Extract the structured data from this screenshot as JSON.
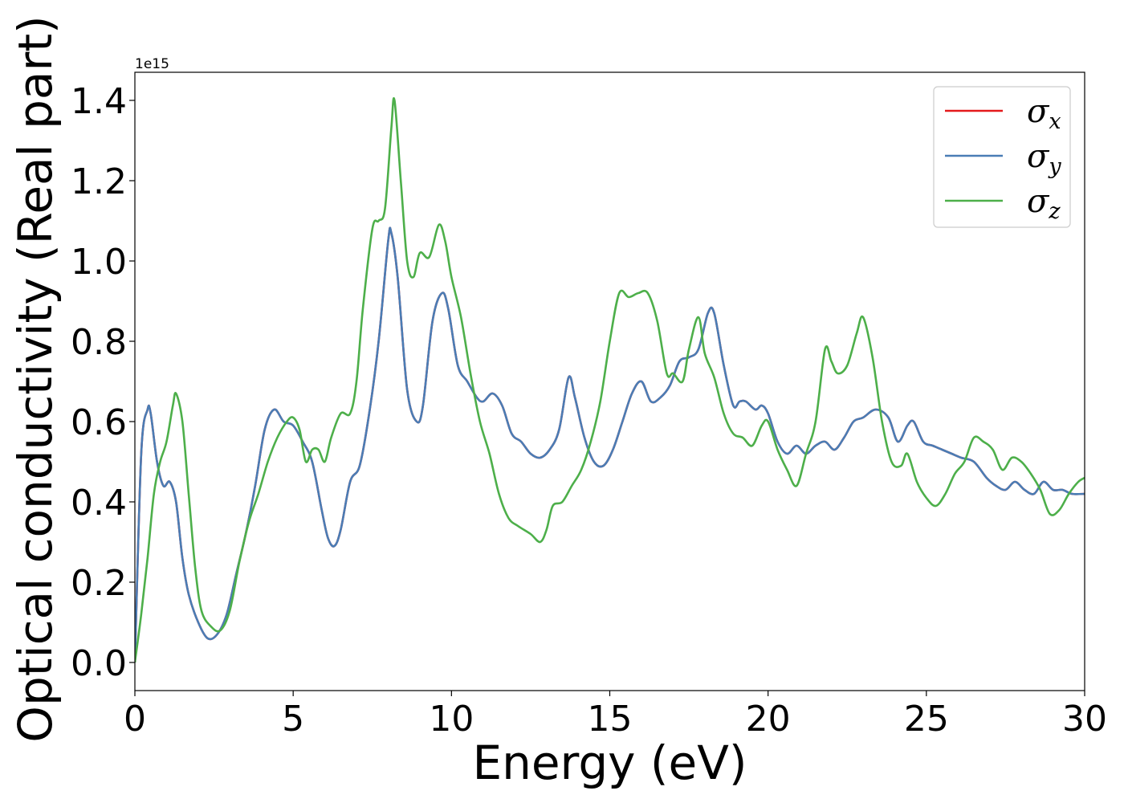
{
  "chart_data": {
    "type": "line",
    "title": "",
    "xlabel": "Energy (eV)",
    "ylabel": "Optical conductivity (Real part)",
    "y_offset_label": "1e15",
    "xlim": [
      0,
      30
    ],
    "ylim": [
      -0.07,
      1.47
    ],
    "xticks": [
      0,
      5,
      10,
      15,
      20,
      25,
      30
    ],
    "xtick_labels": [
      "0",
      "5",
      "10",
      "15",
      "20",
      "25",
      "30"
    ],
    "yticks": [
      0.0,
      0.2,
      0.4,
      0.6,
      0.8,
      1.0,
      1.2,
      1.4
    ],
    "ytick_labels": [
      "0.0",
      "0.2",
      "0.4",
      "0.6",
      "0.8",
      "1.0",
      "1.2",
      "1.4"
    ],
    "grid": false,
    "legend_position": "top-right",
    "series": [
      {
        "name": "σx",
        "symbol": "σ",
        "subscript": "x",
        "color": "#e41a1c",
        "x": [
          0,
          0.2,
          0.4,
          0.5,
          0.7,
          0.9,
          1.1,
          1.3,
          1.5,
          1.7,
          2.0,
          2.3,
          2.6,
          2.9,
          3.2,
          3.5,
          3.8,
          4.1,
          4.4,
          4.7,
          5.0,
          5.3,
          5.6,
          5.9,
          6.1,
          6.3,
          6.5,
          6.8,
          7.1,
          7.4,
          7.7,
          8.0,
          8.1,
          8.3,
          8.6,
          8.9,
          9.1,
          9.4,
          9.7,
          9.9,
          10.2,
          10.5,
          10.8,
          11.0,
          11.3,
          11.6,
          11.9,
          12.2,
          12.5,
          12.8,
          13.1,
          13.4,
          13.7,
          13.9,
          14.2,
          14.5,
          14.8,
          15.1,
          15.4,
          15.7,
          16.0,
          16.3,
          16.6,
          16.9,
          17.2,
          17.5,
          17.8,
          18.1,
          18.3,
          18.6,
          18.9,
          19.1,
          19.3,
          19.6,
          19.8,
          20.0,
          20.3,
          20.6,
          20.9,
          21.2,
          21.5,
          21.8,
          22.1,
          22.4,
          22.7,
          23.0,
          23.4,
          23.8,
          24.1,
          24.4,
          24.6,
          24.9,
          25.2,
          25.5,
          25.8,
          26.1,
          26.5,
          26.9,
          27.2,
          27.5,
          27.8,
          28.1,
          28.4,
          28.7,
          29.0,
          29.3,
          29.6,
          30.0
        ],
        "y": [
          0.0,
          0.52,
          0.63,
          0.62,
          0.5,
          0.44,
          0.45,
          0.4,
          0.26,
          0.17,
          0.1,
          0.06,
          0.07,
          0.12,
          0.22,
          0.32,
          0.44,
          0.58,
          0.63,
          0.6,
          0.59,
          0.55,
          0.5,
          0.38,
          0.31,
          0.29,
          0.33,
          0.45,
          0.49,
          0.62,
          0.8,
          1.05,
          1.07,
          0.96,
          0.68,
          0.6,
          0.64,
          0.85,
          0.92,
          0.88,
          0.74,
          0.7,
          0.66,
          0.65,
          0.67,
          0.64,
          0.57,
          0.55,
          0.52,
          0.51,
          0.53,
          0.58,
          0.71,
          0.66,
          0.56,
          0.5,
          0.49,
          0.53,
          0.6,
          0.67,
          0.7,
          0.65,
          0.66,
          0.69,
          0.75,
          0.76,
          0.78,
          0.87,
          0.87,
          0.74,
          0.64,
          0.65,
          0.65,
          0.63,
          0.64,
          0.62,
          0.55,
          0.52,
          0.54,
          0.52,
          0.54,
          0.55,
          0.53,
          0.56,
          0.6,
          0.61,
          0.63,
          0.61,
          0.55,
          0.59,
          0.6,
          0.55,
          0.54,
          0.53,
          0.52,
          0.51,
          0.5,
          0.46,
          0.44,
          0.43,
          0.45,
          0.43,
          0.42,
          0.45,
          0.43,
          0.43,
          0.42,
          0.42
        ]
      },
      {
        "name": "σy",
        "symbol": "σ",
        "subscript": "y",
        "color": "#4a7db5",
        "x": [
          0,
          0.2,
          0.4,
          0.5,
          0.7,
          0.9,
          1.1,
          1.3,
          1.5,
          1.7,
          2.0,
          2.3,
          2.6,
          2.9,
          3.2,
          3.5,
          3.8,
          4.1,
          4.4,
          4.7,
          5.0,
          5.3,
          5.6,
          5.9,
          6.1,
          6.3,
          6.5,
          6.8,
          7.1,
          7.4,
          7.7,
          8.0,
          8.1,
          8.3,
          8.6,
          8.9,
          9.1,
          9.4,
          9.7,
          9.9,
          10.2,
          10.5,
          10.8,
          11.0,
          11.3,
          11.6,
          11.9,
          12.2,
          12.5,
          12.8,
          13.1,
          13.4,
          13.7,
          13.9,
          14.2,
          14.5,
          14.8,
          15.1,
          15.4,
          15.7,
          16.0,
          16.3,
          16.6,
          16.9,
          17.2,
          17.5,
          17.8,
          18.1,
          18.3,
          18.6,
          18.9,
          19.1,
          19.3,
          19.6,
          19.8,
          20.0,
          20.3,
          20.6,
          20.9,
          21.2,
          21.5,
          21.8,
          22.1,
          22.4,
          22.7,
          23.0,
          23.4,
          23.8,
          24.1,
          24.4,
          24.6,
          24.9,
          25.2,
          25.5,
          25.8,
          26.1,
          26.5,
          26.9,
          27.2,
          27.5,
          27.8,
          28.1,
          28.4,
          28.7,
          29.0,
          29.3,
          29.6,
          30.0
        ],
        "y": [
          0.0,
          0.52,
          0.63,
          0.62,
          0.5,
          0.44,
          0.45,
          0.4,
          0.26,
          0.17,
          0.1,
          0.06,
          0.07,
          0.12,
          0.22,
          0.32,
          0.44,
          0.58,
          0.63,
          0.6,
          0.59,
          0.55,
          0.5,
          0.38,
          0.31,
          0.29,
          0.33,
          0.45,
          0.49,
          0.62,
          0.8,
          1.05,
          1.07,
          0.96,
          0.68,
          0.6,
          0.64,
          0.85,
          0.92,
          0.88,
          0.74,
          0.7,
          0.66,
          0.65,
          0.67,
          0.64,
          0.57,
          0.55,
          0.52,
          0.51,
          0.53,
          0.58,
          0.71,
          0.66,
          0.56,
          0.5,
          0.49,
          0.53,
          0.6,
          0.67,
          0.7,
          0.65,
          0.66,
          0.69,
          0.75,
          0.76,
          0.78,
          0.87,
          0.87,
          0.74,
          0.64,
          0.65,
          0.65,
          0.63,
          0.64,
          0.62,
          0.55,
          0.52,
          0.54,
          0.52,
          0.54,
          0.55,
          0.53,
          0.56,
          0.6,
          0.61,
          0.63,
          0.61,
          0.55,
          0.59,
          0.6,
          0.55,
          0.54,
          0.53,
          0.52,
          0.51,
          0.5,
          0.46,
          0.44,
          0.43,
          0.45,
          0.43,
          0.42,
          0.45,
          0.43,
          0.43,
          0.42,
          0.42
        ]
      },
      {
        "name": "σz",
        "symbol": "σ",
        "subscript": "z",
        "color": "#4daf4a",
        "x": [
          0,
          0.2,
          0.4,
          0.6,
          0.8,
          1.0,
          1.2,
          1.3,
          1.5,
          1.7,
          1.9,
          2.1,
          2.4,
          2.7,
          3.0,
          3.3,
          3.6,
          3.9,
          4.2,
          4.5,
          4.8,
          5.0,
          5.2,
          5.4,
          5.6,
          5.8,
          6.0,
          6.2,
          6.5,
          6.8,
          7.0,
          7.2,
          7.5,
          7.7,
          7.9,
          8.1,
          8.2,
          8.4,
          8.6,
          8.8,
          9.0,
          9.3,
          9.6,
          9.8,
          10.0,
          10.3,
          10.6,
          10.9,
          11.2,
          11.5,
          11.8,
          12.1,
          12.5,
          12.8,
          13.0,
          13.2,
          13.5,
          13.8,
          14.1,
          14.4,
          14.7,
          15.0,
          15.3,
          15.6,
          15.9,
          16.2,
          16.5,
          16.8,
          17.0,
          17.3,
          17.5,
          17.8,
          18.0,
          18.3,
          18.6,
          18.9,
          19.2,
          19.5,
          19.8,
          20.0,
          20.3,
          20.6,
          20.9,
          21.2,
          21.5,
          21.8,
          22.0,
          22.2,
          22.5,
          22.8,
          23.0,
          23.3,
          23.6,
          23.9,
          24.2,
          24.4,
          24.7,
          25.0,
          25.3,
          25.6,
          25.9,
          26.2,
          26.5,
          26.8,
          27.1,
          27.4,
          27.7,
          28.0,
          28.3,
          28.6,
          28.9,
          29.2,
          29.5,
          29.8,
          30.0
        ],
        "y": [
          0.0,
          0.12,
          0.26,
          0.42,
          0.5,
          0.55,
          0.64,
          0.67,
          0.6,
          0.42,
          0.24,
          0.13,
          0.09,
          0.08,
          0.13,
          0.25,
          0.35,
          0.42,
          0.5,
          0.56,
          0.6,
          0.61,
          0.58,
          0.5,
          0.53,
          0.53,
          0.5,
          0.56,
          0.62,
          0.62,
          0.7,
          0.88,
          1.08,
          1.1,
          1.13,
          1.33,
          1.4,
          1.2,
          1.0,
          0.96,
          1.02,
          1.01,
          1.09,
          1.05,
          0.96,
          0.86,
          0.72,
          0.6,
          0.52,
          0.42,
          0.36,
          0.34,
          0.32,
          0.3,
          0.33,
          0.39,
          0.4,
          0.44,
          0.48,
          0.55,
          0.65,
          0.8,
          0.92,
          0.91,
          0.92,
          0.92,
          0.85,
          0.72,
          0.72,
          0.7,
          0.78,
          0.86,
          0.77,
          0.71,
          0.62,
          0.57,
          0.56,
          0.54,
          0.59,
          0.6,
          0.53,
          0.48,
          0.44,
          0.52,
          0.6,
          0.78,
          0.75,
          0.72,
          0.74,
          0.82,
          0.86,
          0.76,
          0.6,
          0.5,
          0.49,
          0.52,
          0.45,
          0.41,
          0.39,
          0.42,
          0.47,
          0.5,
          0.56,
          0.55,
          0.53,
          0.48,
          0.51,
          0.5,
          0.47,
          0.43,
          0.37,
          0.38,
          0.42,
          0.45,
          0.46
        ]
      }
    ]
  }
}
